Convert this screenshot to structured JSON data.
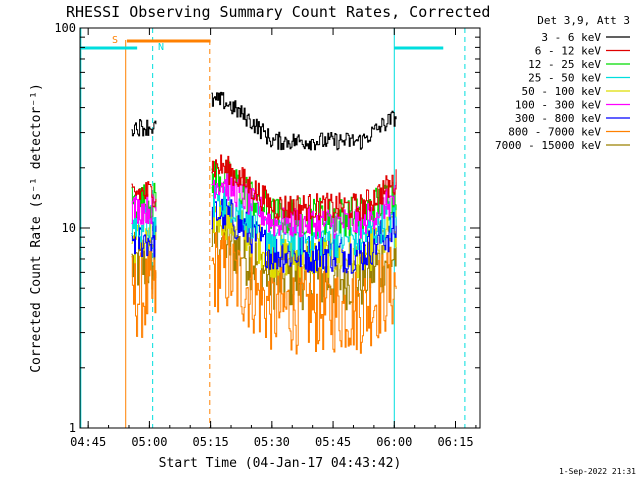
{
  "chart_data": {
    "type": "line",
    "title": "RHESSI Observing Summary Count Rates, Corrected",
    "xlabel": "Start Time (04-Jan-17 04:43:42)",
    "ylabel": "Corrected Count Rate (s⁻¹ detector⁻¹)",
    "y_scale": "log",
    "ylim": [
      1,
      100
    ],
    "xlim_minutes_after_0440": [
      3.0,
      101.0
    ],
    "x_ticks": [
      {
        "label": "04:45",
        "minute": 5
      },
      {
        "label": "05:00",
        "minute": 20
      },
      {
        "label": "05:15",
        "minute": 35
      },
      {
        "label": "05:30",
        "minute": 50
      },
      {
        "label": "05:45",
        "minute": 65
      },
      {
        "label": "06:00",
        "minute": 80
      },
      {
        "label": "06:15",
        "minute": 95
      }
    ],
    "y_ticks": [
      {
        "label": "1",
        "value": 1
      },
      {
        "label": "10",
        "value": 10
      },
      {
        "label": "100",
        "value": 100
      }
    ],
    "legend_header": "Det 3,9, Att 3",
    "legend_position": "right",
    "footer": "1-Sep-2022 21:31",
    "series": [
      {
        "name": "3 - 6 keV",
        "color": "#000000",
        "level": 32.0,
        "noise": 0.045
      },
      {
        "name": "6 - 12 keV",
        "color": "#e00000",
        "level": 15.0,
        "noise": 0.07
      },
      {
        "name": "12 - 25 keV",
        "color": "#00dc00",
        "level": 13.5,
        "noise": 0.1
      },
      {
        "name": "25 - 50 keV",
        "color": "#00dede",
        "level": 10.5,
        "noise": 0.1
      },
      {
        "name": "50 - 100 keV",
        "color": "#dede00",
        "level": 8.5,
        "noise": 0.11
      },
      {
        "name": "100 - 300 keV",
        "color": "#ff00ff",
        "level": 12.5,
        "noise": 0.08
      },
      {
        "name": "300 - 800 keV",
        "color": "#0000ff",
        "level": 8.8,
        "noise": 0.1
      },
      {
        "name": "800 - 7000 keV",
        "color": "#ff8000",
        "level": 4.6,
        "noise": 0.14
      },
      {
        "name": "7000 - 15000 keV",
        "color": "#9a8000",
        "level": 6.6,
        "noise": 0.1
      }
    ],
    "data_intervals_minutes": [
      [
        15.6,
        21.8
      ],
      [
        35.2,
        80.5
      ]
    ],
    "markers": {
      "saa_label": "S",
      "night_label": "N",
      "saa_bar_minutes": [
        14.5,
        35.0
      ],
      "night_bar_left_minutes": [
        3.2,
        17.0
      ],
      "night_bar_right_minutes": [
        80.0,
        92.0
      ],
      "saa_lines_minutes": [
        {
          "minute": 14.2,
          "style": "solid"
        },
        {
          "minute": 34.8,
          "style": "dashed"
        }
      ],
      "night_lines_minutes": [
        {
          "minute": 3.2,
          "style": "solid"
        },
        {
          "minute": 20.8,
          "style": "dashed"
        },
        {
          "minute": 80.0,
          "style": "solid"
        },
        {
          "minute": 97.3,
          "style": "dashed"
        }
      ],
      "saa_color": "#ff8000",
      "night_color": "#00dede"
    }
  }
}
